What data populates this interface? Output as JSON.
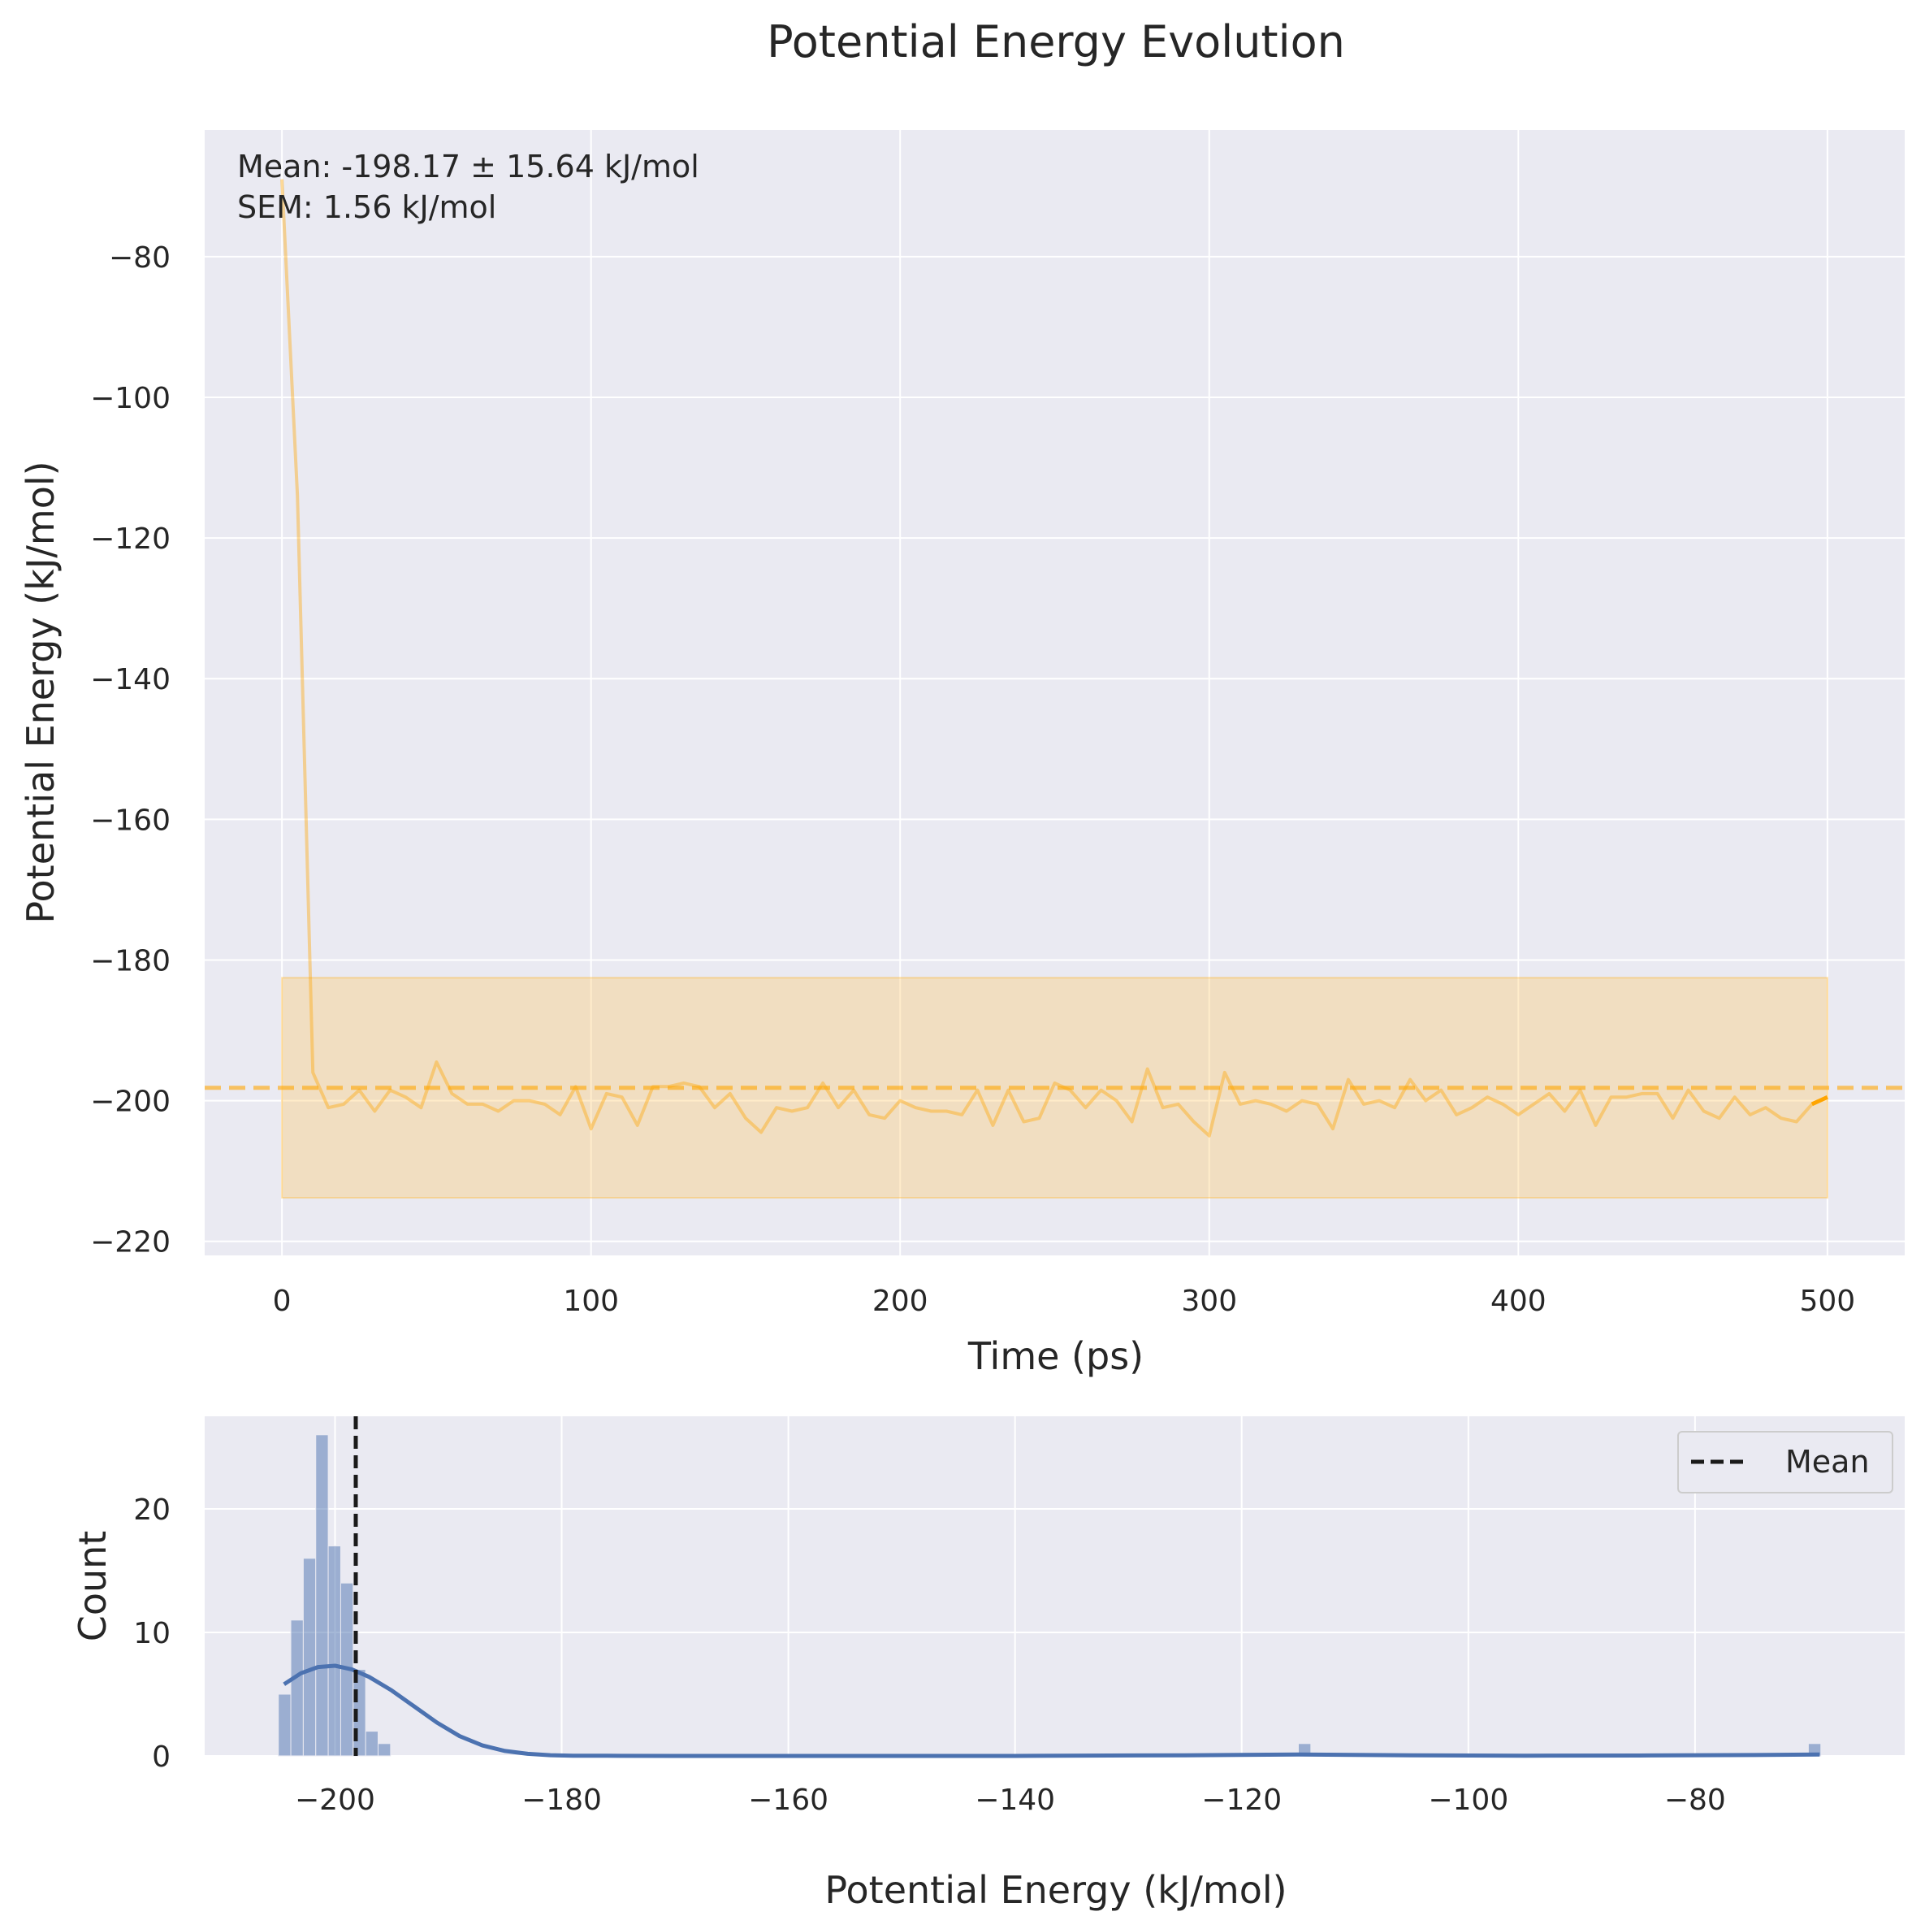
{
  "title": "Potential Energy Evolution",
  "chart_data": [
    {
      "type": "line",
      "xlabel": "Time (ps)",
      "ylabel": "Potential Energy (kJ/mol)",
      "xlim": [
        -25,
        525
      ],
      "ylim": [
        -222,
        -62
      ],
      "xticks": [
        0,
        100,
        200,
        300,
        400,
        500
      ],
      "yticks": [
        -80,
        -100,
        -120,
        -140,
        -160,
        -180,
        -200,
        -220
      ],
      "grid": true,
      "annotation": [
        "Mean: -198.17 ± 15.64 kJ/mol",
        "SEM: 1.56 kJ/mol"
      ],
      "mean": -198.17,
      "std_band": [
        -213.81,
        -182.53
      ],
      "line_color": "#ffa500",
      "series": [
        {
          "x": [
            0,
            5,
            10,
            15,
            20,
            25,
            30,
            35,
            40,
            45,
            50,
            55,
            60,
            65,
            70,
            75,
            80,
            85,
            90,
            95,
            100,
            105,
            110,
            115,
            120,
            125,
            130,
            135,
            140,
            145,
            150,
            155,
            160,
            165,
            170,
            175,
            180,
            185,
            190,
            195,
            200,
            205,
            210,
            215,
            220,
            225,
            230,
            235,
            240,
            245,
            250,
            255,
            260,
            265,
            270,
            275,
            280,
            285,
            290,
            295,
            300,
            305,
            310,
            315,
            320,
            325,
            330,
            335,
            340,
            345,
            350,
            355,
            360,
            365,
            370,
            375,
            380,
            385,
            390,
            395,
            400,
            405,
            410,
            415,
            420,
            425,
            430,
            435,
            440,
            445,
            450,
            455,
            460,
            465,
            470,
            475,
            480,
            485,
            490,
            495,
            500
          ],
          "values": [
            -69,
            -114,
            -196,
            -201,
            -200.5,
            -198.5,
            -201.5,
            -198.5,
            -199.5,
            -201,
            -194.5,
            -199,
            -200.5,
            -200.5,
            -201.5,
            -200,
            -200,
            -200.5,
            -202,
            -198,
            -204,
            -199,
            -199.5,
            -203.5,
            -198,
            -198,
            -197.5,
            -198,
            -201,
            -199,
            -202.5,
            -204.5,
            -201,
            -201.5,
            -201,
            -197.5,
            -201,
            -198.5,
            -202,
            -202.5,
            -200,
            -201,
            -201.5,
            -201.5,
            -202,
            -198.5,
            -203.5,
            -198.5,
            -203,
            -202.5,
            -197.5,
            -198.5,
            -201,
            -198.5,
            -200,
            -203,
            -195.5,
            -201,
            -200.5,
            -203,
            -205,
            -196,
            -200.5,
            -200,
            -200.5,
            -201.5,
            -200,
            -200.5,
            -204,
            -197,
            -200.5,
            -200,
            -201,
            -197,
            -200,
            -198.5,
            -202,
            -201,
            -199.5,
            -200.5,
            -202,
            -200.5,
            -199,
            -201.5,
            -198.5,
            -203.5,
            -199.5,
            -199.5,
            -199,
            -199,
            -202.5,
            -198.5,
            -201.5,
            -202.5,
            -199.5,
            -202,
            -201,
            -202.5,
            -203,
            -200.5,
            -199.5
          ]
        }
      ]
    },
    {
      "type": "bar",
      "xlabel": "Potential Energy (kJ/mol)",
      "ylabel": "Count",
      "xlim": [
        -211.5,
        -61.5
      ],
      "ylim": [
        0,
        27.5
      ],
      "xticks": [
        -200,
        -180,
        -160,
        -140,
        -120,
        -100,
        -80
      ],
      "yticks": [
        0,
        10,
        20
      ],
      "grid": true,
      "bar_color": "#4c72b0",
      "bin_width": 1.1,
      "bins": [
        {
          "x": -205,
          "count": 5
        },
        {
          "x": -203.9,
          "count": 11
        },
        {
          "x": -202.8,
          "count": 16
        },
        {
          "x": -201.7,
          "count": 26
        },
        {
          "x": -200.6,
          "count": 17
        },
        {
          "x": -199.5,
          "count": 14
        },
        {
          "x": -198.4,
          "count": 7
        },
        {
          "x": -197.3,
          "count": 2
        },
        {
          "x": -196.2,
          "count": 1
        },
        {
          "x": -115.0,
          "count": 1
        },
        {
          "x": -70.0,
          "count": 1
        }
      ],
      "kde": {
        "x": [
          -204.5,
          -203,
          -201.5,
          -200,
          -198.5,
          -197,
          -195,
          -193,
          -191,
          -189,
          -187,
          -185,
          -183,
          -181,
          -179,
          -176,
          -170,
          -160,
          -140,
          -125,
          -115,
          -105,
          -95,
          -85,
          -75,
          -69
        ],
        "values": [
          5.8,
          6.7,
          7.2,
          7.3,
          7.0,
          6.4,
          5.3,
          4.0,
          2.7,
          1.6,
          0.85,
          0.4,
          0.17,
          0.06,
          0.02,
          0.01,
          0,
          0,
          0,
          0.05,
          0.12,
          0.05,
          0.02,
          0.03,
          0.07,
          0.12
        ]
      },
      "mean": -198.17,
      "legend": {
        "position": "top-right",
        "entries": [
          "Mean"
        ]
      }
    }
  ]
}
